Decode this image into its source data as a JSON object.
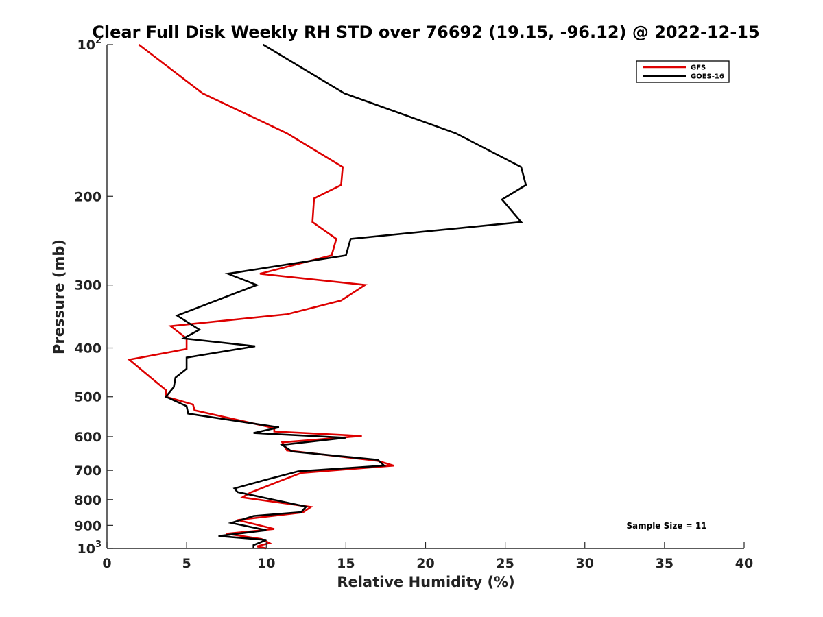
{
  "chart_data": {
    "type": "line",
    "title": "Clear Full Disk Weekly RH STD over 76692 (19.15, -96.12) @ 2022-12-15",
    "xlabel": "Relative Humidity (%)",
    "ylabel": "Pressure (mb)",
    "xlim": [
      0,
      40
    ],
    "ylim": [
      100,
      1000
    ],
    "yscale": "log",
    "y_reversed": true,
    "x_ticks": [
      0,
      5,
      10,
      15,
      20,
      25,
      30,
      35,
      40
    ],
    "x_tick_labels": [
      "0",
      "5",
      "10",
      "15",
      "20",
      "25",
      "30",
      "35",
      "40"
    ],
    "y_ticks": [
      100,
      200,
      300,
      400,
      500,
      600,
      700,
      800,
      900,
      1000
    ],
    "y_tick_labels": [
      {
        "base": "10",
        "exp": "2"
      },
      {
        "base": "200",
        "exp": ""
      },
      {
        "base": "300",
        "exp": ""
      },
      {
        "base": "400",
        "exp": ""
      },
      {
        "base": "500",
        "exp": ""
      },
      {
        "base": "600",
        "exp": ""
      },
      {
        "base": "700",
        "exp": ""
      },
      {
        "base": "800",
        "exp": ""
      },
      {
        "base": "900",
        "exp": ""
      },
      {
        "base": "10",
        "exp": "3"
      }
    ],
    "grid": false,
    "legend_position": "top-right",
    "annotation": "Sample Size = 11",
    "series": [
      {
        "name": "GFS",
        "color": "#dd0000",
        "points": [
          [
            2.0,
            100
          ],
          [
            6.0,
            125
          ],
          [
            11.3,
            150
          ],
          [
            14.8,
            175
          ],
          [
            14.7,
            190
          ],
          [
            13.0,
            202
          ],
          [
            12.9,
            225
          ],
          [
            14.4,
            243
          ],
          [
            14.1,
            262
          ],
          [
            9.6,
            285
          ],
          [
            16.2,
            300
          ],
          [
            14.7,
            322
          ],
          [
            11.3,
            343
          ],
          [
            4.0,
            362
          ],
          [
            5.0,
            383
          ],
          [
            5.0,
            402
          ],
          [
            1.4,
            422
          ],
          [
            2.2,
            443
          ],
          [
            3.0,
            465
          ],
          [
            3.7,
            485
          ],
          [
            3.7,
            500
          ],
          [
            5.4,
            518
          ],
          [
            5.5,
            532
          ],
          [
            10.5,
            577
          ],
          [
            10.5,
            586
          ],
          [
            16.0,
            598
          ],
          [
            11.0,
            616
          ],
          [
            11.3,
            639
          ],
          [
            17.0,
            670
          ],
          [
            18.0,
            685
          ],
          [
            12.2,
            708
          ],
          [
            10.8,
            736
          ],
          [
            9.0,
            775
          ],
          [
            8.5,
            792
          ],
          [
            12.8,
            827
          ],
          [
            12.3,
            848
          ],
          [
            8.2,
            878
          ],
          [
            10.5,
            915
          ],
          [
            7.5,
            935
          ],
          [
            9.7,
            958
          ],
          [
            10.2,
            976
          ],
          [
            9.4,
            991
          ],
          [
            10.0,
            1000
          ]
        ]
      },
      {
        "name": "GOES-16",
        "color": "#000000",
        "points": [
          [
            9.8,
            100
          ],
          [
            14.9,
            125
          ],
          [
            21.9,
            150
          ],
          [
            26.0,
            175
          ],
          [
            26.3,
            190
          ],
          [
            24.8,
            203
          ],
          [
            26.0,
            225
          ],
          [
            15.3,
            243
          ],
          [
            15.0,
            262
          ],
          [
            7.6,
            285
          ],
          [
            9.4,
            300
          ],
          [
            4.4,
            345
          ],
          [
            5.8,
            368
          ],
          [
            4.8,
            383
          ],
          [
            9.3,
            397
          ],
          [
            5.0,
            418
          ],
          [
            5.0,
            440
          ],
          [
            4.3,
            458
          ],
          [
            4.2,
            478
          ],
          [
            3.7,
            500
          ],
          [
            5.0,
            522
          ],
          [
            5.1,
            540
          ],
          [
            10.8,
            575
          ],
          [
            9.2,
            590
          ],
          [
            15.0,
            603
          ],
          [
            11.0,
            623
          ],
          [
            11.6,
            642
          ],
          [
            17.0,
            667
          ],
          [
            17.4,
            685
          ],
          [
            12.0,
            703
          ],
          [
            9.8,
            733
          ],
          [
            8.0,
            760
          ],
          [
            8.2,
            773
          ],
          [
            12.5,
            826
          ],
          [
            12.2,
            847
          ],
          [
            9.2,
            862
          ],
          [
            7.8,
            890
          ],
          [
            10.0,
            920
          ],
          [
            7.0,
            945
          ],
          [
            10.0,
            962
          ],
          [
            9.2,
            985
          ],
          [
            9.2,
            1000
          ]
        ]
      }
    ]
  }
}
